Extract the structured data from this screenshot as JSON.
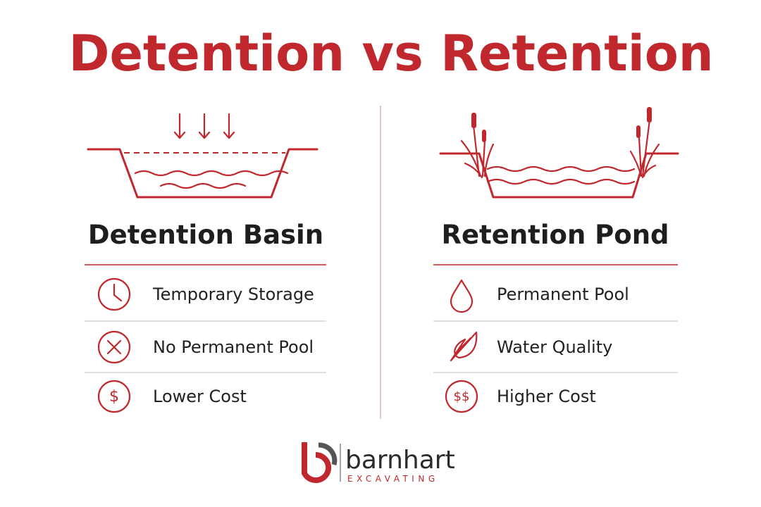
{
  "title": "Detention vs Retention",
  "left": {
    "heading": "Detention Basin",
    "items": [
      {
        "text": "Temporary Storage"
      },
      {
        "text": "No Permanent Pool"
      },
      {
        "icon_text": "$",
        "text": "Lower Cost"
      }
    ]
  },
  "right": {
    "heading": "Retention Pond",
    "items": [
      {
        "text": "Permanent Pool"
      },
      {
        "text": "Water Quality"
      },
      {
        "icon_text": "$$",
        "text": "Higher Cost"
      }
    ]
  },
  "logo": {
    "name": "barnhart",
    "tagline": "EXCAVATING"
  }
}
